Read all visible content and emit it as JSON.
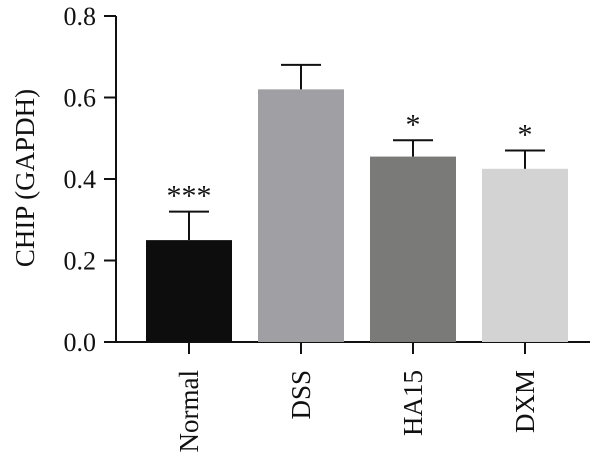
{
  "chart_data": {
    "type": "bar",
    "title": "",
    "xlabel": "",
    "ylabel": "CHIP (GAPDH)",
    "ylim": [
      0,
      0.8
    ],
    "yticks": [
      0.0,
      0.2,
      0.4,
      0.6,
      0.8
    ],
    "ytick_labels": [
      "0.0",
      "0.2",
      "0.4",
      "0.6",
      "0.8"
    ],
    "categories": [
      "Normal",
      "DSS",
      "HA15",
      "DXM"
    ],
    "values": [
      0.25,
      0.62,
      0.455,
      0.425
    ],
    "error_upper": [
      0.07,
      0.06,
      0.04,
      0.045
    ],
    "significance": [
      "***",
      "",
      "*",
      "*"
    ],
    "colors": [
      "#0d0d0d",
      "#a0a0a4",
      "#7a7b79",
      "#d3d3d3"
    ],
    "grid": false,
    "legend": "none"
  }
}
